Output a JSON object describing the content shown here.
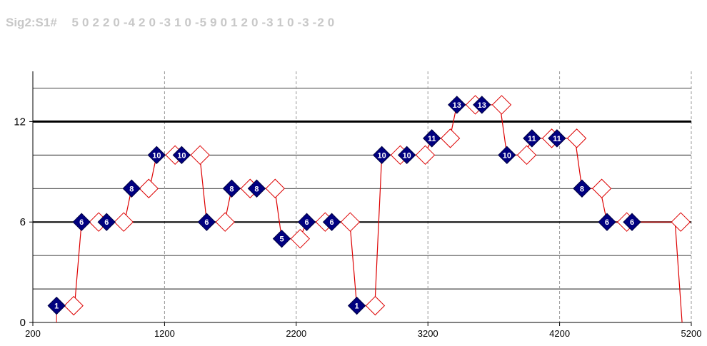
{
  "header": {
    "label": "Sig2:S1#",
    "values": [
      "5",
      "0",
      "2",
      "2",
      "0",
      "-4",
      "2",
      "0",
      "-3",
      "1",
      "0",
      "-5",
      "9",
      "0",
      "1",
      "2",
      "0",
      "-3",
      "1",
      "0",
      "-3",
      "-2",
      "0"
    ]
  },
  "chart_data": {
    "type": "step-line",
    "xlim": [
      200,
      5200
    ],
    "ylim": [
      0,
      15
    ],
    "x_ticks": [
      200,
      1200,
      2200,
      3200,
      4200,
      5200
    ],
    "y_ticks": [
      0,
      6,
      12
    ],
    "minor_grid_y": [
      2,
      4,
      8,
      10,
      14
    ],
    "bold_lines_y": [
      6,
      12
    ],
    "series": [
      {
        "type": "line",
        "color": "#dd0000",
        "x": [
          380,
          570,
          760,
          950,
          1140,
          1330,
          1520,
          1710,
          1900,
          2090,
          2280,
          2470,
          2660,
          2850,
          3040,
          3230,
          3420,
          3610,
          3800,
          3990,
          4180,
          4370,
          4560,
          4750,
          4940,
          5130
        ],
        "y": [
          1,
          6,
          6,
          8,
          10,
          10,
          6,
          8,
          8,
          5,
          6,
          6,
          1,
          10,
          10,
          11,
          13,
          13,
          10,
          11,
          11,
          8,
          6,
          6,
          6,
          0
        ]
      },
      {
        "type": "marker",
        "style": "filled-diamond",
        "color": "#000080",
        "x": [
          380,
          570,
          760,
          950,
          1140,
          1330,
          1520,
          1710,
          1900,
          2090,
          2280,
          2470,
          2660,
          2850,
          3040,
          3230,
          3420,
          3610,
          3800,
          3990,
          4180,
          4370,
          4560,
          4750
        ],
        "y": [
          1,
          6,
          6,
          8,
          10,
          10,
          6,
          8,
          8,
          5,
          6,
          6,
          1,
          10,
          10,
          11,
          13,
          13,
          10,
          11,
          11,
          8,
          6,
          6
        ],
        "labels": [
          "1",
          "6",
          "6",
          "8",
          "10",
          "10",
          "6",
          "8",
          "8",
          "5",
          "6",
          "6",
          "1",
          "10",
          "10",
          "11",
          "13",
          "13",
          "10",
          "11",
          "11",
          "8",
          "6",
          "6"
        ]
      },
      {
        "type": "marker",
        "style": "hollow-diamond",
        "color": "#dd0000",
        "x": [
          510,
          700,
          890,
          1080,
          1280,
          1470,
          1660,
          1850,
          2040,
          2230,
          2420,
          2610,
          2800,
          2990,
          3180,
          3370,
          3560,
          3760,
          3950,
          4140,
          4330,
          4520,
          4710,
          5120
        ],
        "y": [
          1,
          6,
          6,
          8,
          10,
          10,
          6,
          8,
          8,
          5,
          6,
          6,
          1,
          10,
          10,
          11,
          13,
          13,
          10,
          11,
          11,
          8,
          6,
          6
        ]
      }
    ]
  }
}
